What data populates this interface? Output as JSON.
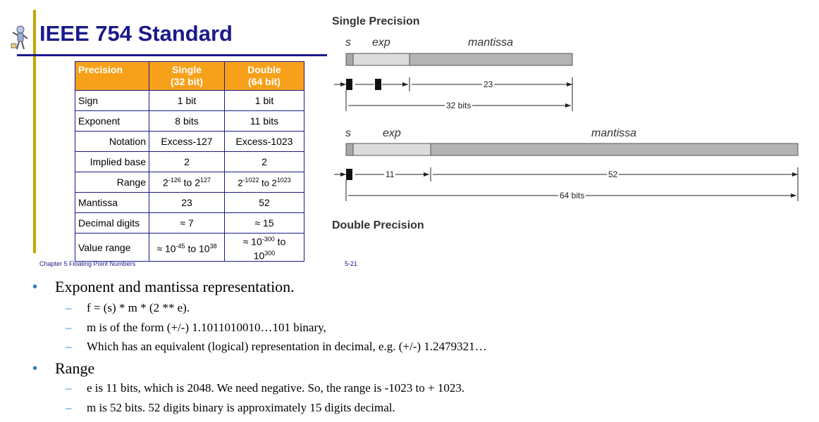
{
  "header": {
    "title": "IEEE 754 Standard"
  },
  "table": {
    "headers": [
      "Precision",
      "Single\n(32 bit)",
      "Double\n(64 bit)"
    ],
    "rows": [
      {
        "label": "Sign",
        "single": "1 bit",
        "double": "1 bit"
      },
      {
        "label": "Exponent",
        "single": "8 bits",
        "double": "11 bits"
      },
      {
        "label": "Notation",
        "single": "Excess-127",
        "double": "Excess-1023"
      },
      {
        "label": "Implied base",
        "single": "2",
        "double": "2"
      },
      {
        "label": "Range",
        "single_base": "2",
        "single_exp_lo": "-126",
        "single_mid": " to 2",
        "single_exp_hi": "127",
        "double_base": "2",
        "double_exp_lo": "-1022",
        "double_mid": " to 2",
        "double_exp_hi": "1023"
      },
      {
        "label": "Mantissa",
        "single": "23",
        "double": "52"
      },
      {
        "label": "Decimal digits",
        "single": "≈ 7",
        "double": "≈ 15"
      },
      {
        "label": "Value range",
        "single_pre": "≈ 10",
        "single_exp_lo": "-45",
        "single_mid": " to 10",
        "single_exp_hi": "38",
        "double_pre": "≈ 10",
        "double_exp_lo": "-300",
        "double_mid": " to",
        "double_line2": "10",
        "double_exp_hi": "300"
      }
    ]
  },
  "footer": {
    "left": "Chapter 5 Floating Point Numbers",
    "right": "5-21"
  },
  "diagram": {
    "single_title": "Single Precision",
    "double_title": "Double Precision",
    "field_s": "s",
    "field_exp": "exp",
    "field_mantissa": "mantissa",
    "single_mantissa_bits": "23",
    "single_total_bits": "32 bits",
    "double_exp_bits": "11",
    "double_mantissa_bits": "52",
    "double_total_bits": "64 bits"
  },
  "bullets": [
    {
      "text": "Exponent and mantissa representation.",
      "subs": [
        "f = (s) * m * (2 ** e).",
        "m is of the form (+/-) 1.1011010010…101 binary,",
        "Which has an equivalent (logical) representation in decimal, e.g. (+/-) 1.2479321…"
      ]
    },
    {
      "text": "Range",
      "subs": [
        "e  is 11 bits, which is 2048. We need negative. So, the range is -1023 to + 1023.",
        "m is 52 bits. 52 digits binary is approximately 15 digits decimal."
      ]
    }
  ],
  "colors": {
    "title": "#1a1a8c",
    "header_fill": "#f7a11a",
    "accent_bar": "#c8a400",
    "bullet": "#2a7fc2"
  }
}
